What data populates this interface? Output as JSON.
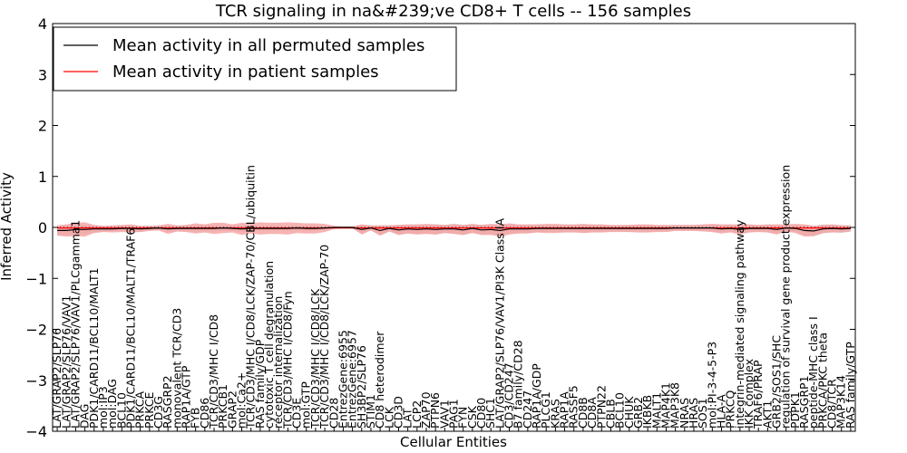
{
  "chart_data": {
    "type": "line",
    "title": "TCR signaling in na&#239;ve CD8+ T cells -- 156 samples",
    "xlabel": "Cellular Entities",
    "ylabel": "Inferred Activity",
    "ylim": [
      -4,
      4
    ],
    "yticks": [
      -4,
      -3,
      -2,
      -1,
      0,
      1,
      2,
      3,
      4
    ],
    "ytick_labels": [
      "−4",
      "−3",
      "−2",
      "−1",
      "0",
      "1",
      "2",
      "3",
      "4"
    ],
    "xlim": [
      0,
      86
    ],
    "legend": {
      "placement": "top-left",
      "entries": [
        {
          "label": "Mean activity in all permuted samples",
          "color": "#000000"
        },
        {
          "label": "Mean activity in patient samples",
          "color": "#ff0000"
        }
      ]
    },
    "categories": [
      "LAT/GRAP2/SLP76",
      "LAT/GRAP2/SLP76/VAV1",
      "LAT/GRAP2/SLP76/VAV1/PLCgamma1",
      "DAG",
      "PDK1/CARD11/BCL10/MALT1",
      "mol:IP3",
      "mol:DAG",
      "BCL10",
      "PDK1/CARD11/BCL10/MALT1/TRAF6",
      "PRKCA",
      "PRKCE",
      "CD3G",
      "RASGRP2",
      "monovalent TCR/CD3",
      "RAP1A/GTP",
      "FYB",
      "CD86",
      "TCR/CD3/MHC I/CD8",
      "PRKCB1",
      "GRAP2",
      "mol:Ca2+",
      "TCR/CD3/MHC I/CD8/LCK/ZAP-70/CBL/ubiquitin",
      "RAS family/GDP",
      "cytotoxic T cell degranulation",
      "receptor internalization",
      "TCR/CD3/MHC I/CD8/Fyn",
      "CD3E",
      "mol:GTP",
      "TCR/CD3/MHC I/CD8/LCK",
      "TCR/CD3/MHC I/CD8/LCK/ZAP-70",
      "CD28",
      "EntrezGene:6955",
      "EntrezGene:6957",
      "SH3BP2/SLP76",
      "STIM1",
      "CD8 heterodimer",
      "LCK",
      "CD3D",
      "LAT",
      "LCP2",
      "ZAP70",
      "PTPN6",
      "VAV1",
      "PAG1",
      "FYN",
      "CSK",
      "CD80",
      "SHC1",
      "LAT/GRAP2/SLP76/VAV1/PI3K Class IA",
      "CD3/CD247",
      "B7 family/CD28",
      "CD247",
      "RAP1A/GDP",
      "PLCG1",
      "KRAS",
      "RAP1A",
      "RASSF5",
      "CD8B",
      "CD8A",
      "PTPN22",
      "CBLB",
      "BCL10",
      "CHUK",
      "GRB2",
      "IKBKB",
      "MALT1",
      "MAP4K1",
      "MAP3K8",
      "NRAS",
      "HRAS",
      "SOS1",
      "mol:PI-3-4-5-P3",
      "HLA-A",
      "PRKCQ",
      "integrin-mediated signaling pathway",
      "IKK complex",
      "TRAF6/PRAP",
      "AKT1",
      "GRB2/SOS1/SHC",
      "regulation of survival gene product expression",
      "PDPK1",
      "RASGRP1",
      "peptide-MHC class I",
      "PRKCA/PKC theta",
      "CD8/TCR",
      "MAP3K14",
      "RAS family/GTP"
    ],
    "series": [
      {
        "name": "Mean activity in all permuted samples",
        "color": "#000000",
        "values": [
          -0.06,
          -0.06,
          -0.04,
          -0.04,
          -0.03,
          -0.03,
          -0.03,
          -0.02,
          -0.02,
          -0.03,
          -0.02,
          -0.01,
          -0.03,
          -0.02,
          -0.02,
          -0.02,
          -0.02,
          -0.02,
          -0.01,
          -0.02,
          -0.03,
          -0.02,
          -0.02,
          -0.02,
          -0.02,
          -0.02,
          -0.01,
          -0.02,
          -0.02,
          -0.01,
          0.0,
          0.0,
          0.0,
          -0.04,
          -0.01,
          -0.06,
          -0.02,
          -0.05,
          -0.03,
          -0.04,
          -0.03,
          -0.04,
          -0.03,
          -0.03,
          -0.05,
          -0.02,
          -0.05,
          -0.04,
          -0.06,
          -0.03,
          -0.03,
          -0.03,
          -0.02,
          -0.02,
          -0.02,
          -0.02,
          -0.02,
          -0.02,
          -0.02,
          -0.02,
          -0.02,
          -0.02,
          -0.02,
          -0.02,
          -0.02,
          -0.02,
          -0.02,
          -0.01,
          -0.01,
          -0.01,
          -0.01,
          -0.01,
          -0.03,
          -0.02,
          -0.04,
          -0.02,
          -0.02,
          -0.02,
          -0.04,
          -0.01,
          -0.02,
          -0.06,
          -0.07,
          -0.03,
          -0.02,
          -0.03,
          -0.02
        ]
      },
      {
        "name": "Mean activity in patient samples",
        "color": "#ff0000",
        "values": [
          -0.01,
          -0.01,
          -0.01,
          -0.01,
          -0.01,
          -0.01,
          -0.01,
          -0.01,
          -0.01,
          -0.01,
          -0.01,
          -0.01,
          -0.01,
          -0.01,
          -0.01,
          -0.01,
          -0.01,
          -0.01,
          -0.01,
          -0.01,
          -0.01,
          -0.01,
          -0.01,
          -0.01,
          -0.01,
          -0.01,
          -0.01,
          -0.01,
          -0.01,
          -0.01,
          -0.01,
          -0.01,
          -0.01,
          -0.01,
          -0.01,
          -0.01,
          -0.01,
          -0.01,
          -0.01,
          -0.01,
          -0.01,
          -0.01,
          -0.01,
          -0.01,
          -0.01,
          -0.01,
          -0.01,
          -0.01,
          -0.01,
          -0.01,
          -0.01,
          -0.01,
          -0.01,
          -0.01,
          -0.01,
          -0.01,
          -0.01,
          -0.01,
          -0.01,
          -0.01,
          -0.01,
          -0.01,
          -0.01,
          -0.01,
          -0.01,
          -0.01,
          -0.01,
          -0.01,
          -0.01,
          -0.01,
          -0.01,
          -0.01,
          -0.01,
          -0.01,
          -0.01,
          -0.01,
          -0.01,
          -0.01,
          -0.01,
          -0.01,
          -0.01,
          -0.01,
          -0.01,
          -0.01,
          -0.01,
          -0.01,
          -0.01
        ]
      }
    ],
    "bands": [
      {
        "name": "permuted spread",
        "color": "#dddddd",
        "half_width": [
          0.1,
          0.1,
          0.09,
          0.09,
          0.07,
          0.05,
          0.05,
          0.05,
          0.05,
          0.06,
          0.05,
          0.04,
          0.06,
          0.06,
          0.06,
          0.06,
          0.06,
          0.06,
          0.06,
          0.05,
          0.06,
          0.05,
          0.05,
          0.05,
          0.05,
          0.05,
          0.05,
          0.05,
          0.05,
          0.04,
          0.01,
          0.01,
          0.01,
          0.09,
          0.04,
          0.1,
          0.06,
          0.1,
          0.08,
          0.09,
          0.08,
          0.1,
          0.08,
          0.09,
          0.1,
          0.08,
          0.1,
          0.09,
          0.1,
          0.09,
          0.08,
          0.08,
          0.07,
          0.07,
          0.07,
          0.07,
          0.07,
          0.08,
          0.07,
          0.07,
          0.06,
          0.06,
          0.07,
          0.06,
          0.07,
          0.06,
          0.06,
          0.06,
          0.06,
          0.06,
          0.06,
          0.07,
          0.07,
          0.06,
          0.08,
          0.07,
          0.06,
          0.07,
          0.08,
          0.06,
          0.07,
          0.1,
          0.1,
          0.09,
          0.07,
          0.08,
          0.06
        ]
      },
      {
        "name": "patient spread",
        "color": "#f59a9a",
        "half_width": [
          0.1,
          0.12,
          0.13,
          0.14,
          0.08,
          0.06,
          0.07,
          0.07,
          0.08,
          0.06,
          0.05,
          0.05,
          0.1,
          0.06,
          0.07,
          0.1,
          0.08,
          0.11,
          0.1,
          0.08,
          0.12,
          0.1,
          0.12,
          0.11,
          0.11,
          0.12,
          0.1,
          0.1,
          0.1,
          0.08,
          0.03,
          0.02,
          0.02,
          0.1,
          0.05,
          0.1,
          0.06,
          0.1,
          0.09,
          0.1,
          0.1,
          0.1,
          0.08,
          0.1,
          0.1,
          0.09,
          0.1,
          0.11,
          0.12,
          0.11,
          0.09,
          0.09,
          0.08,
          0.09,
          0.09,
          0.08,
          0.08,
          0.09,
          0.08,
          0.08,
          0.07,
          0.07,
          0.07,
          0.08,
          0.08,
          0.07,
          0.07,
          0.06,
          0.06,
          0.06,
          0.07,
          0.08,
          0.09,
          0.08,
          0.1,
          0.08,
          0.07,
          0.08,
          0.1,
          0.07,
          0.09,
          0.12,
          0.1,
          0.08,
          0.08,
          0.07,
          0.06
        ]
      }
    ]
  }
}
